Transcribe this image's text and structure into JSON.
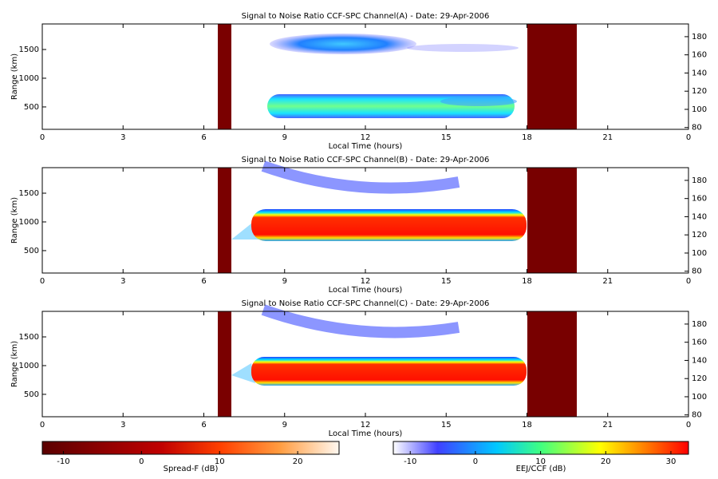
{
  "chart_data": [
    {
      "type": "heatmap",
      "title": "Signal to Noise Ratio CCF-SPC Channel(A) - Date: 29-Apr-2006",
      "x_label": "Local Time (hours)",
      "y_label": "Range (km)",
      "xlim": [
        0,
        24
      ],
      "xticks": [
        0,
        3,
        6,
        9,
        12,
        15,
        18,
        21,
        {
          "value": 24,
          "label": "0"
        }
      ],
      "ylim": [
        110,
        1945
      ],
      "yticks": [
        500,
        1000,
        1500
      ],
      "y2lim": [
        78,
        194
      ],
      "y2ticks": [
        80,
        100,
        120,
        140,
        160,
        180
      ]
    },
    {
      "type": "heatmap",
      "title": "Signal to Noise Ratio CCF-SPC Channel(B) - Date: 29-Apr-2006",
      "x_label": "Local Time (hours)",
      "y_label": "Range (km)",
      "xlim": [
        0,
        24
      ],
      "xticks": [
        0,
        3,
        6,
        9,
        12,
        15,
        18,
        21,
        {
          "value": 24,
          "label": "0"
        }
      ],
      "ylim": [
        110,
        1945
      ],
      "yticks": [
        500,
        1000,
        1500
      ],
      "y2lim": [
        78,
        194
      ],
      "y2ticks": [
        80,
        100,
        120,
        140,
        160,
        180
      ]
    },
    {
      "type": "heatmap",
      "title": "Signal to Noise Ratio CCF-SPC Channel(C) - Date: 29-Apr-2006",
      "x_label": "Local Time (hours)",
      "y_label": "Range (km)",
      "xlim": [
        0,
        24
      ],
      "xticks": [
        0,
        3,
        6,
        9,
        12,
        15,
        18,
        21,
        {
          "value": 24,
          "label": "0"
        }
      ],
      "ylim": [
        110,
        1945
      ],
      "yticks": [
        500,
        1000,
        1500
      ],
      "y2lim": [
        78,
        194
      ],
      "y2ticks": [
        80,
        100,
        120,
        140,
        160,
        180
      ]
    }
  ],
  "colorbars": [
    {
      "label": "Spread-F (dB)",
      "lim": [
        -12.7,
        25.3
      ],
      "ticks": [
        -10,
        0,
        10,
        20
      ]
    },
    {
      "label": "EEJ/CCF (dB)",
      "lim": [
        -12.6,
        32.7
      ],
      "ticks": [
        -10,
        0,
        10,
        20,
        30
      ]
    }
  ]
}
